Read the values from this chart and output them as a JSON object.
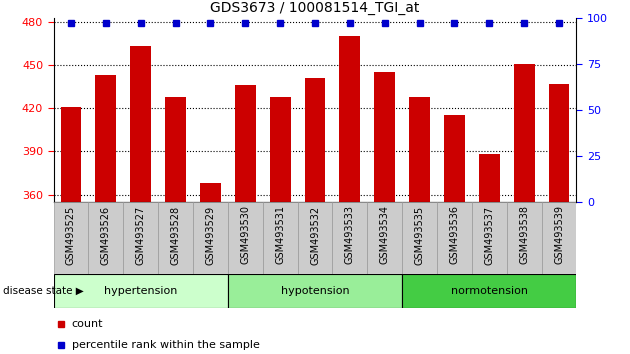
{
  "title": "GDS3673 / 100081514_TGI_at",
  "samples": [
    "GSM493525",
    "GSM493526",
    "GSM493527",
    "GSM493528",
    "GSM493529",
    "GSM493530",
    "GSM493531",
    "GSM493532",
    "GSM493533",
    "GSM493534",
    "GSM493535",
    "GSM493536",
    "GSM493537",
    "GSM493538",
    "GSM493539"
  ],
  "bar_values": [
    421,
    443,
    463,
    428,
    368,
    436,
    428,
    441,
    470,
    445,
    428,
    415,
    388,
    451,
    437
  ],
  "percentile_values": [
    97,
    97,
    97,
    97,
    97,
    97,
    97,
    97,
    97,
    97,
    97,
    97,
    97,
    97,
    97
  ],
  "bar_color": "#cc0000",
  "percentile_color": "#0000cc",
  "ylim_left": [
    355,
    483
  ],
  "ylim_right": [
    0,
    100
  ],
  "yticks_left": [
    360,
    390,
    420,
    450,
    480
  ],
  "yticks_right": [
    0,
    25,
    50,
    75,
    100
  ],
  "groups": [
    {
      "label": "hypertension",
      "start": 0,
      "end": 4,
      "color": "#ccffcc"
    },
    {
      "label": "hypotension",
      "start": 5,
      "end": 9,
      "color": "#99ee99"
    },
    {
      "label": "normotension",
      "start": 10,
      "end": 14,
      "color": "#44cc44"
    }
  ],
  "group_label_prefix": "disease state",
  "legend_count_label": "count",
  "legend_percentile_label": "percentile rank within the sample",
  "bar_width": 0.6,
  "background_color": "#ffffff",
  "plot_bg_color": "#ffffff",
  "xtick_bg_color": "#cccccc",
  "xtick_border_color": "#999999"
}
